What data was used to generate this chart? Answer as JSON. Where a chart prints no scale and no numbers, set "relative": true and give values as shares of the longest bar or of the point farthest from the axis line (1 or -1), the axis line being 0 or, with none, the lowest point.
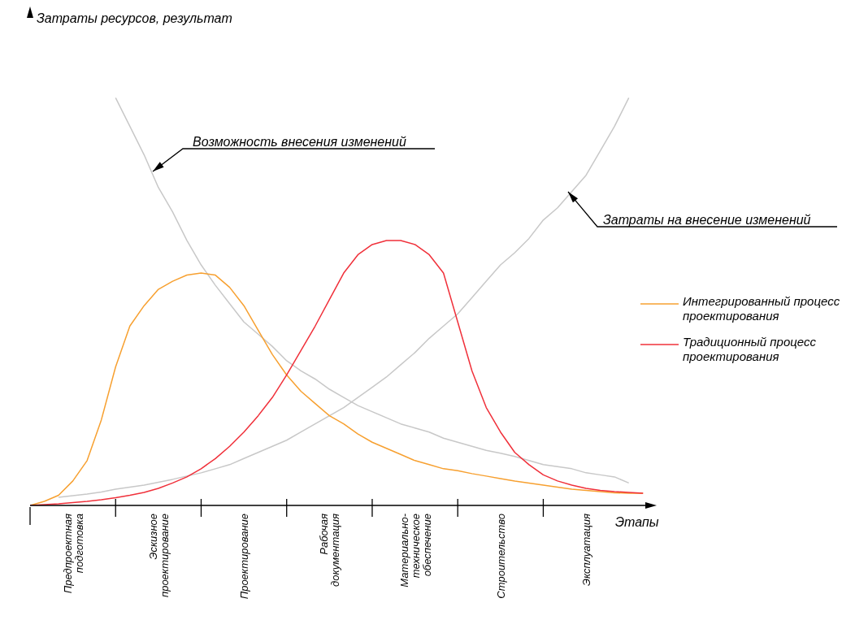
{
  "chart_data": {
    "type": "line",
    "relative": true,
    "xlabel": "Этапы",
    "categories": [
      null,
      null,
      null,
      "Предпроектная подготовка",
      null,
      null,
      null,
      null,
      null,
      "Эскизное проектирование",
      null,
      null,
      null,
      null,
      null,
      "Проектирование",
      null,
      null,
      null,
      null,
      null,
      "Рабочая документация",
      null,
      null,
      null,
      null,
      null,
      "Материально-техническое обеспечение",
      null,
      null,
      null,
      null,
      null,
      "Строительство",
      null,
      null,
      null,
      null,
      null,
      "Эксплуатация",
      null,
      null,
      null,
      null
    ],
    "series": [
      {
        "color": "#c8c8c8",
        "values": [
          null,
          null,
          null,
          null,
          null,
          null,
          1.0,
          0.93,
          0.86,
          0.78,
          0.72,
          0.65,
          0.59,
          0.54,
          0.495,
          0.45,
          0.42,
          0.39,
          0.355,
          0.33,
          0.31,
          0.285,
          0.265,
          0.245,
          0.23,
          0.215,
          0.2,
          0.19,
          0.18,
          0.165,
          0.155,
          0.145,
          0.135,
          0.128,
          0.12,
          0.11,
          0.1,
          0.095,
          0.09,
          0.08,
          0.075,
          0.07,
          0.055,
          null
        ]
      },
      {
        "color": "#c8c8c8",
        "values": [
          null,
          null,
          0.02,
          0.024,
          0.028,
          0.033,
          0.04,
          0.045,
          0.05,
          0.057,
          0.064,
          0.072,
          0.08,
          0.09,
          0.1,
          0.115,
          0.13,
          0.145,
          0.16,
          0.18,
          0.2,
          0.22,
          0.24,
          0.265,
          0.29,
          0.315,
          0.345,
          0.375,
          0.41,
          0.44,
          0.47,
          0.51,
          0.55,
          0.59,
          0.62,
          0.655,
          0.7,
          0.73,
          0.77,
          0.81,
          0.87,
          0.93,
          1.0,
          null
        ]
      },
      {
        "name": "Интегрированный процесс проектирования",
        "color": "#f7a030",
        "values": [
          0,
          0.01,
          0.025,
          0.06,
          0.11,
          0.21,
          0.34,
          0.44,
          0.49,
          0.53,
          0.55,
          0.565,
          0.57,
          0.565,
          0.535,
          0.49,
          0.43,
          0.37,
          0.32,
          0.28,
          0.25,
          0.22,
          0.2,
          0.175,
          0.155,
          0.14,
          0.125,
          0.11,
          0.1,
          0.09,
          0.085,
          0.078,
          0.072,
          0.066,
          0.06,
          0.055,
          0.05,
          0.045,
          0.04,
          0.037,
          0.034,
          0.031,
          0.03,
          0.03
        ]
      },
      {
        "name": "Традиционный процесс проектирования",
        "color": "#f0303a",
        "values": [
          0,
          0.002,
          0.004,
          0.007,
          0.01,
          0.014,
          0.019,
          0.025,
          0.032,
          0.042,
          0.055,
          0.07,
          0.09,
          0.115,
          0.145,
          0.18,
          0.22,
          0.265,
          0.32,
          0.38,
          0.44,
          0.505,
          0.57,
          0.615,
          0.64,
          0.65,
          0.65,
          0.64,
          0.615,
          0.57,
          0.45,
          0.33,
          0.24,
          0.18,
          0.13,
          0.1,
          0.075,
          0.06,
          0.05,
          0.042,
          0.037,
          0.034,
          0.032,
          0.03
        ]
      }
    ],
    "annotations": [
      "Возможность внесения изменений",
      "Затраты на внесение изменений",
      "Затраты ресурсов, результат"
    ],
    "legend": "right",
    "grid": false,
    "marker": "none",
    "line_style": "solid"
  }
}
